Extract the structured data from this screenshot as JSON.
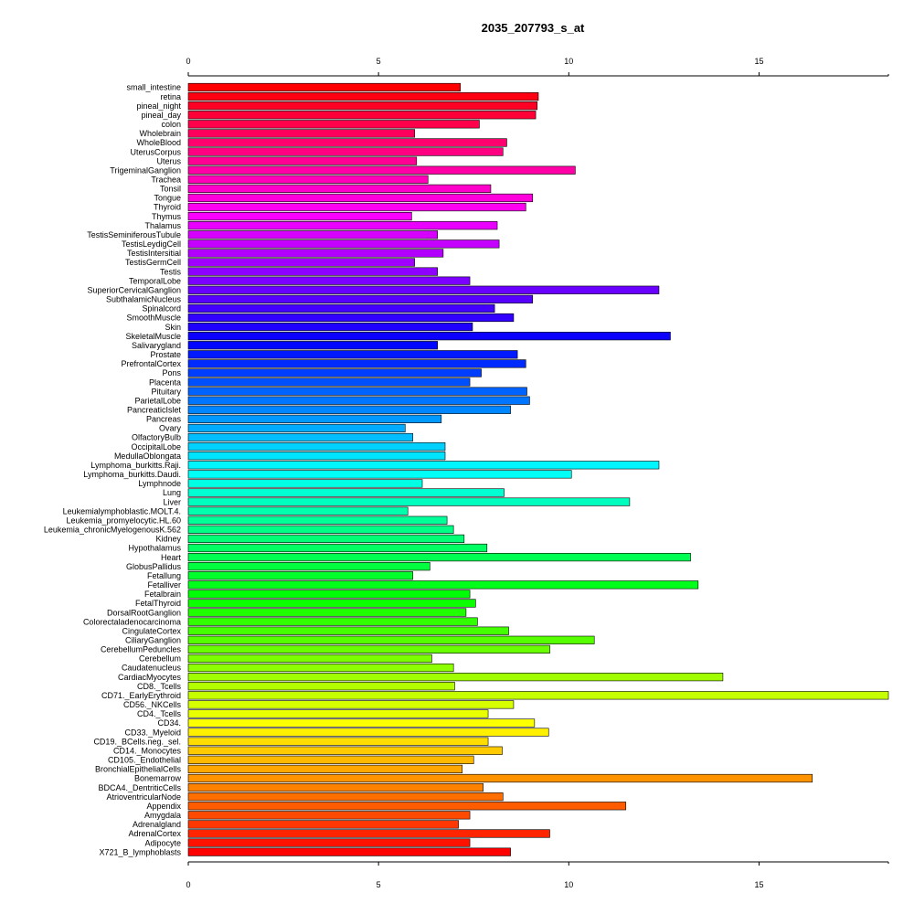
{
  "chart_data": {
    "type": "bar",
    "orientation": "horizontal",
    "title": "2035_207793_s_at",
    "xlabel": "",
    "ylabel": "",
    "xlim": [
      0,
      18.4
    ],
    "x_ticks": [
      0,
      5,
      10,
      15
    ],
    "x_tick_labels": [
      "0",
      "5",
      "10",
      "15"
    ],
    "axes": [
      "top",
      "bottom"
    ],
    "grid": false,
    "legend": "none",
    "color_scheme": "rainbow gradient from red (top) through yellow, green, cyan, blue, magenta to red (bottom)",
    "categories": [
      "small_intestine",
      "retina",
      "pineal_night",
      "pineal_day",
      "colon",
      "Wholebrain",
      "WholeBlood",
      "UterusCorpus",
      "Uterus",
      "TrigeminalGanglion",
      "Trachea",
      "Tonsil",
      "Tongue",
      "Thyroid",
      "Thymus",
      "Thalamus",
      "TestisSeminiferousTubule",
      "TestisLeydigCell",
      "TestisIntersitial",
      "TestisGermCell",
      "Testis",
      "TemporalLobe",
      "SuperiorCervicalGanglion",
      "SubthalamicNucleus",
      "Spinalcord",
      "SmoothMuscle",
      "Skin",
      "SkeletalMuscle",
      "Salivarygland",
      "Prostate",
      "PrefrontalCortex",
      "Pons",
      "Placenta",
      "Pituitary",
      "ParietalLobe",
      "PancreaticIslet",
      "Pancreas",
      "Ovary",
      "OlfactoryBulb",
      "OccipitalLobe",
      "MedullaOblongata",
      "Lymphoma_burkitts.Raji.",
      "Lymphoma_burkitts.Daudi.",
      "Lymphnode",
      "Lung",
      "Liver",
      "Leukemialymphoblastic.MOLT.4.",
      "Leukemia_promyelocytic.HL.60",
      "Leukemia_chronicMyelogenousK.562",
      "Kidney",
      "Hypothalamus",
      "Heart",
      "GlobusPallidus",
      "Fetallung",
      "Fetalliver",
      "Fetalbrain",
      "FetalThyroid",
      "DorsalRootGanglion",
      "Colorectaladenocarcinoma",
      "CingulateCortex",
      "CiliaryGanglion",
      "CerebellumPeduncles",
      "Cerebellum",
      "Caudatenucleus",
      "CardiacMyocytes",
      "CD8._Tcells",
      "CD71._EarlyErythroid",
      "CD56._NKCells",
      "CD4._Tcells",
      "CD34.",
      "CD33._Myeloid",
      "CD19._BCells.neg._sel.",
      "CD14._Monocytes",
      "CD105._Endothelial",
      "BronchialEpithelialCells",
      "Bonemarrow",
      "BDCA4._DentriticCells",
      "AtrioventricularNode",
      "Appendix",
      "Amygdala",
      "Adrenalgland",
      "AdrenalCortex",
      "Adipocyte",
      "X721_B_lymphoblasts"
    ],
    "values": [
      7.15,
      9.2,
      9.17,
      9.13,
      7.65,
      5.95,
      8.37,
      8.27,
      6.0,
      10.17,
      6.3,
      7.95,
      9.05,
      8.87,
      5.87,
      8.12,
      6.55,
      8.17,
      6.7,
      5.95,
      6.55,
      7.4,
      12.37,
      9.05,
      8.05,
      8.55,
      7.47,
      12.67,
      6.55,
      8.65,
      8.87,
      7.7,
      7.4,
      8.9,
      8.97,
      8.47,
      6.65,
      5.7,
      5.9,
      6.75,
      6.75,
      12.37,
      10.07,
      6.15,
      8.3,
      11.6,
      5.77,
      6.8,
      6.97,
      7.25,
      7.85,
      13.2,
      6.35,
      5.9,
      13.4,
      7.4,
      7.55,
      7.3,
      7.6,
      8.42,
      10.67,
      9.5,
      6.4,
      6.97,
      14.05,
      7.0,
      18.4,
      8.55,
      7.88,
      9.1,
      9.47,
      7.88,
      8.25,
      7.5,
      7.2,
      16.4,
      7.75,
      8.27,
      11.5,
      7.4,
      7.1,
      9.5,
      7.4,
      8.47
    ]
  }
}
